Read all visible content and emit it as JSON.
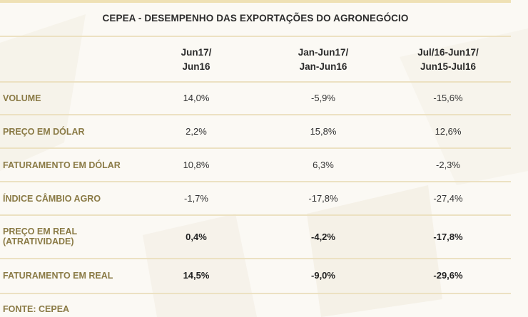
{
  "title": "CEPEA - DESEMPENHO DAS EXPORTAÇÕES DO AGRONEGÓCIO",
  "columns": [
    {
      "line1": "Jun17/",
      "line2": "Jun16"
    },
    {
      "line1": "Jan-Jun17/",
      "line2": "Jan-Jun16"
    },
    {
      "line1": "Jul/16-Jun17/",
      "line2": "Jun15-Jul16"
    }
  ],
  "rows": [
    {
      "label1": "VOLUME",
      "label2": "",
      "values": [
        "14,0%",
        "-5,9%",
        "-15,6%"
      ],
      "bold": false
    },
    {
      "label1": "PREÇO EM DÓLAR",
      "label2": "",
      "values": [
        "2,2%",
        "15,8%",
        "12,6%"
      ],
      "bold": false
    },
    {
      "label1": "FATURAMENTO EM DÓLAR",
      "label2": "",
      "values": [
        "10,8%",
        "6,3%",
        "-2,3%"
      ],
      "bold": false
    },
    {
      "label1": "ÍNDICE CÂMBIO AGRO",
      "label2": "",
      "values": [
        "-1,7%",
        "-17,8%",
        "-27,4%"
      ],
      "bold": false
    },
    {
      "label1": "PREÇO EM REAL",
      "label2": "(ATRATIVIDADE)",
      "values": [
        "0,4%",
        "-4,2%",
        "-17,8%"
      ],
      "bold": true
    },
    {
      "label1": "FATURAMENTO EM REAL",
      "label2": "",
      "values": [
        "14,5%",
        "-9,0%",
        "-29,6%"
      ],
      "bold": true
    }
  ],
  "source": "FONTE: CEPEA"
}
